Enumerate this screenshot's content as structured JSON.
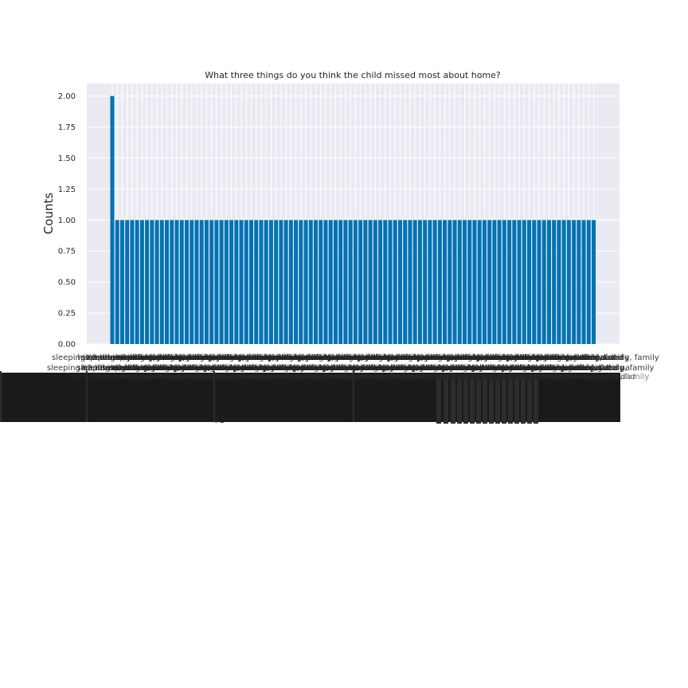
{
  "chart_data": {
    "type": "bar",
    "title": "What three things do you think the child missed most about home?",
    "xlabel": "",
    "ylabel": "Counts",
    "ylim": [
      0,
      2.1
    ],
    "yticks": [
      "0.00",
      "0.25",
      "0.50",
      "0.75",
      "1.00",
      "1.25",
      "1.50",
      "1.75",
      "2.00"
    ],
    "grid": true,
    "legend": "none",
    "x_tick_labels_legible": false,
    "bar_count": 98,
    "values": [
      2,
      1,
      1,
      1,
      1,
      1,
      1,
      1,
      1,
      1,
      1,
      1,
      1,
      1,
      1,
      1,
      1,
      1,
      1,
      1,
      1,
      1,
      1,
      1,
      1,
      1,
      1,
      1,
      1,
      1,
      1,
      1,
      1,
      1,
      1,
      1,
      1,
      1,
      1,
      1,
      1,
      1,
      1,
      1,
      1,
      1,
      1,
      1,
      1,
      1,
      1,
      1,
      1,
      1,
      1,
      1,
      1,
      1,
      1,
      1,
      1,
      1,
      1,
      1,
      1,
      1,
      1,
      1,
      1,
      1,
      1,
      1,
      1,
      1,
      1,
      1,
      1,
      1,
      1,
      1,
      1,
      1,
      1,
      1,
      1,
      1,
      1,
      1,
      1,
      1,
      1,
      1,
      1,
      1,
      1,
      1,
      1,
      1
    ],
    "xtick_fragments": [
      "his mom and dad",
      "sleeping on a bed, eating, family",
      "spent a night a pa",
      "#2 his mom and dad",
      "because it was",
      "#3"
    ]
  },
  "colors": {
    "bar": "#0173b2",
    "plot_bg": "#eaeaf2",
    "grid": "#ffffff",
    "text": "#262626",
    "label_overlap": "#1a1a1a"
  }
}
